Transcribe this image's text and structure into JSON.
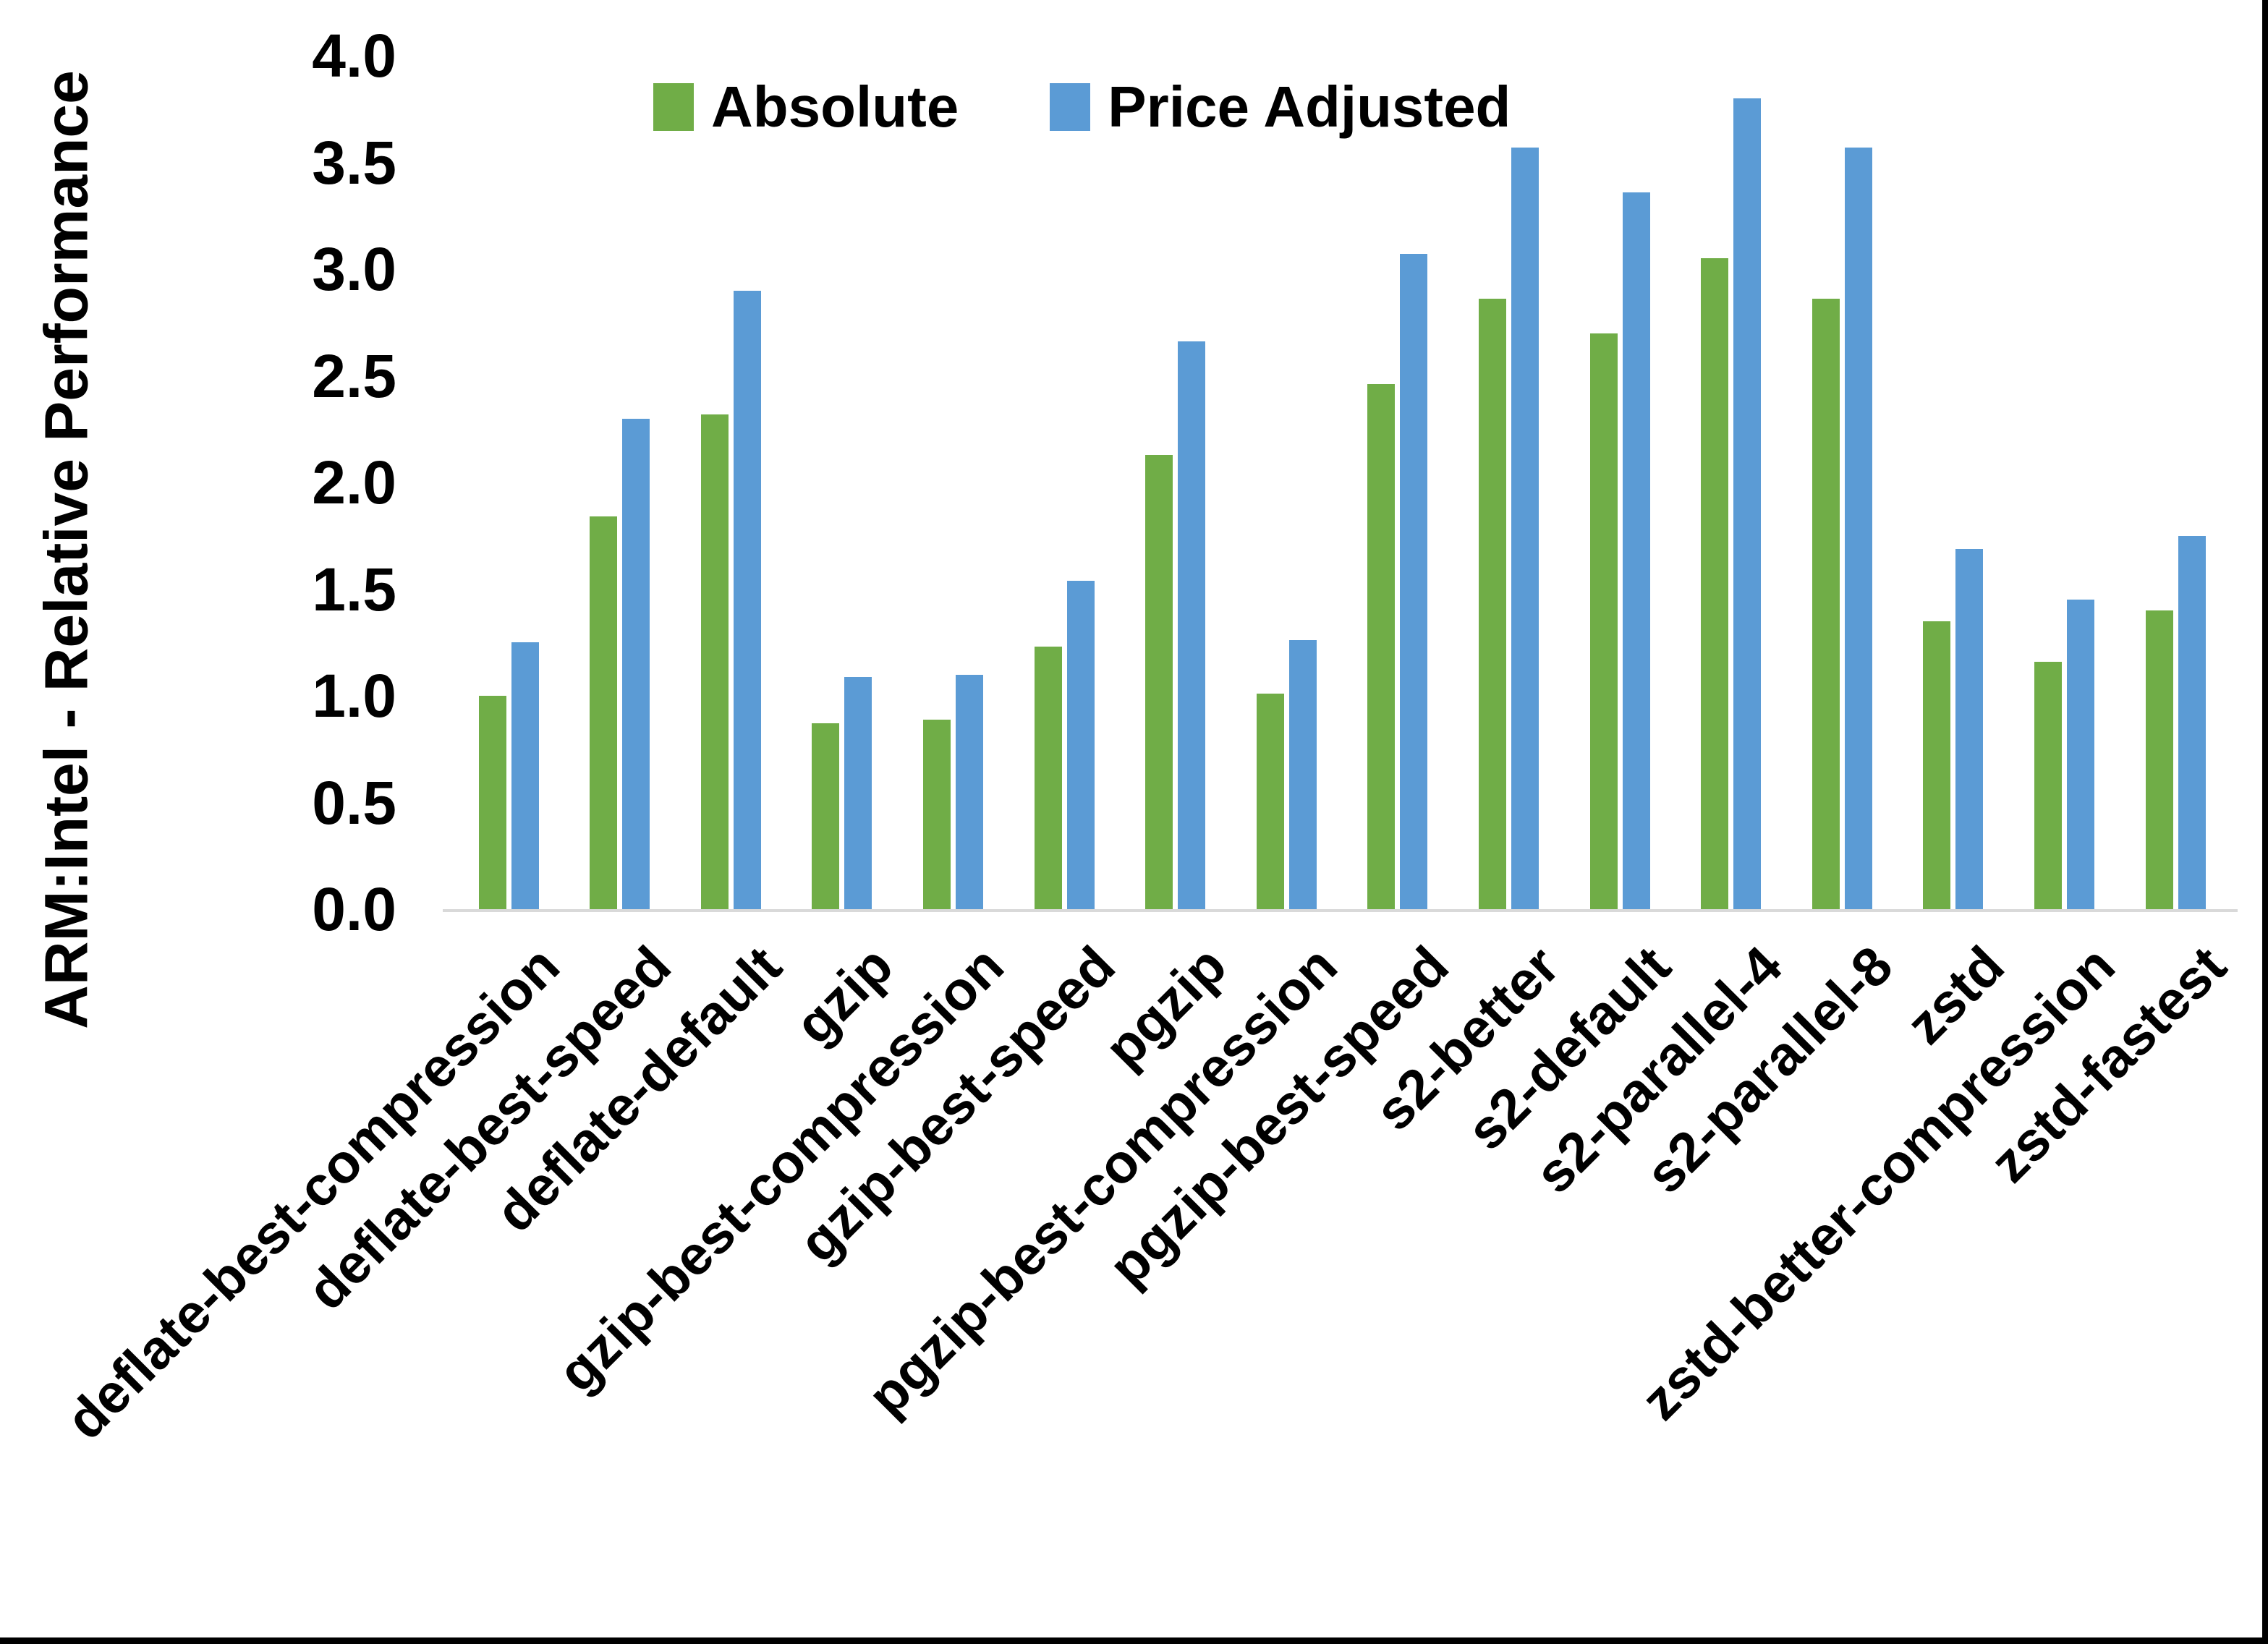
{
  "chart_data": {
    "type": "bar",
    "title": "",
    "xlabel": "",
    "ylabel": "ARM:Intel - Relative Performance",
    "ylim": [
      0.0,
      4.0
    ],
    "ytick_step": 0.5,
    "grid": false,
    "legend_position": "top-center-inside",
    "categories": [
      "deflate-best-compression",
      "deflate-best-speed",
      "deflate-default",
      "gzip",
      "gzip-best-compression",
      "gzip-best-speed",
      "pgzip",
      "pgzip-best-compression",
      "pgzip-best-speed",
      "s2-better",
      "s2-default",
      "s2-parallel-4",
      "s2-parallel-8",
      "zstd",
      "zstd-better-compression",
      "zstd-fastest"
    ],
    "series": [
      {
        "name": "Absolute",
        "color": "#70AD47",
        "values": [
          1.0,
          1.84,
          2.32,
          0.87,
          0.89,
          1.23,
          2.13,
          1.01,
          2.46,
          2.86,
          2.7,
          3.05,
          2.86,
          1.35,
          1.16,
          1.4
        ]
      },
      {
        "name": "Price Adjusted",
        "color": "#5B9BD5",
        "values": [
          1.25,
          2.3,
          2.9,
          1.09,
          1.1,
          1.54,
          2.66,
          1.26,
          3.07,
          3.57,
          3.36,
          3.8,
          3.57,
          1.69,
          1.45,
          1.75
        ]
      }
    ]
  },
  "colors": {
    "background": "#FFFFFF",
    "axis_line": "#D9D9D9",
    "text": "#000000",
    "border": "#000000"
  }
}
